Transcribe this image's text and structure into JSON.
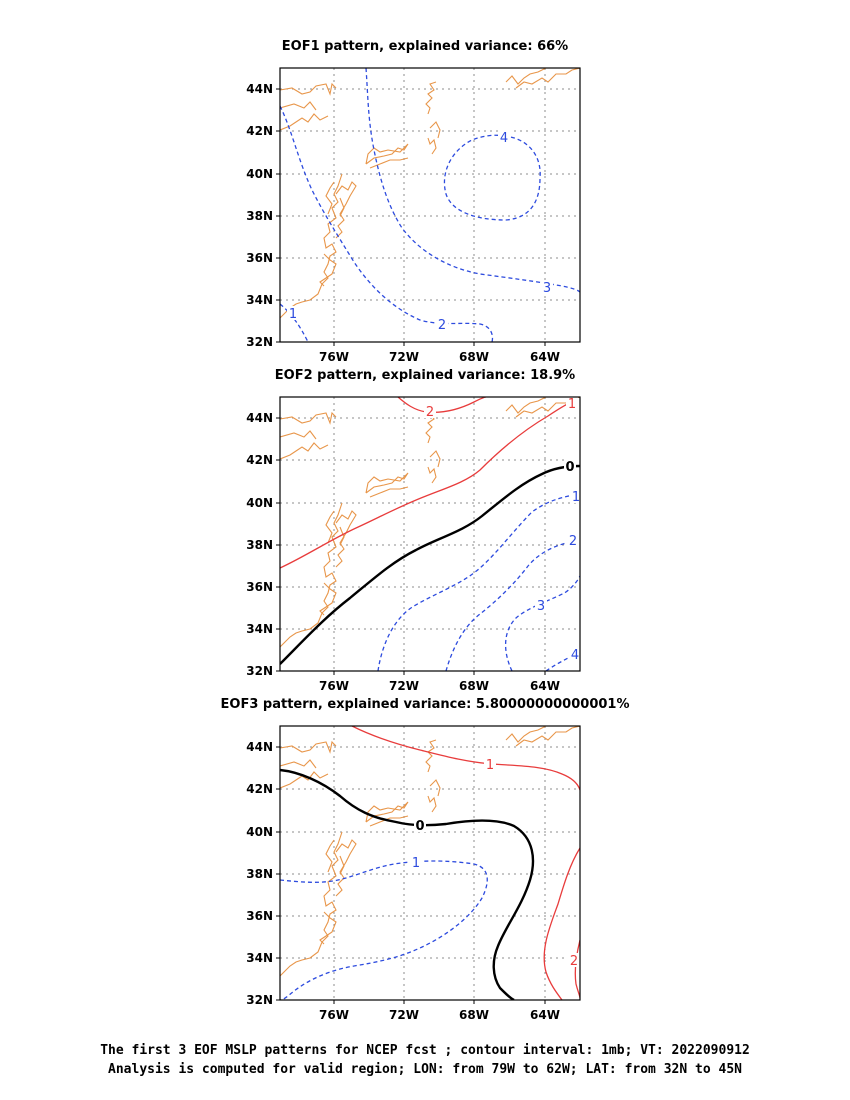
{
  "panels": [
    {
      "title": "EOF1 pattern, explained variance: 66%",
      "xticks": [
        "76W",
        "72W",
        "68W",
        "64W"
      ],
      "yticks": [
        "32N",
        "34N",
        "36N",
        "38N",
        "40N",
        "42N",
        "44N"
      ],
      "contour_labels": [
        "1",
        "2",
        "3",
        "4"
      ]
    },
    {
      "title": "EOF2 pattern, explained variance: 18.9%",
      "xticks": [
        "76W",
        "72W",
        "68W",
        "64W"
      ],
      "yticks": [
        "32N",
        "34N",
        "36N",
        "38N",
        "40N",
        "42N",
        "44N"
      ],
      "contour_labels": [
        "2",
        "1",
        "0",
        "1",
        "2",
        "3",
        "4"
      ]
    },
    {
      "title": "EOF3 pattern, explained variance: 5.80000000000001%",
      "xticks": [
        "76W",
        "72W",
        "68W",
        "64W"
      ],
      "yticks": [
        "32N",
        "34N",
        "36N",
        "38N",
        "40N",
        "42N",
        "44N"
      ],
      "contour_labels": [
        "1",
        "0",
        "1",
        "2"
      ]
    }
  ],
  "colors": {
    "coast": "#e8964a",
    "positive": "#e83c3c",
    "negative": "#2d4bde",
    "zero": "#000000",
    "grid": "#8c8c8c"
  },
  "caption": {
    "line1": "The first 3 EOF MSLP patterns for NCEP fcst ; contour interval: 1mb; VT: 2022090912",
    "line2": "Analysis is computed for valid region; LON: from 79W to 62W; LAT: from 32N to 45N"
  }
}
